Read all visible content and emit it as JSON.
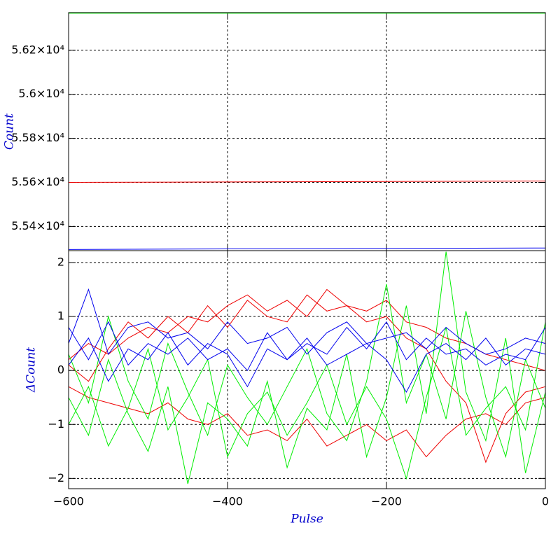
{
  "chart_data": [
    {
      "type": "line",
      "y_label": "Count",
      "x": [
        -600,
        -400,
        -200,
        0
      ],
      "xlim": [
        -600,
        0
      ],
      "xticks": [
        -600,
        -400,
        -200,
        0
      ],
      "show_xtick_labels": false,
      "ylim": [
        55290,
        56371
      ],
      "yticks": [
        {
          "value": 55400,
          "label": "5.54×10⁴"
        },
        {
          "value": 55600,
          "label": "5.56×10⁴"
        },
        {
          "value": 55800,
          "label": "5.58×10⁴"
        },
        {
          "value": 56000,
          "label": "5.6×10⁴"
        },
        {
          "value": 56200,
          "label": "5.62×10⁴"
        }
      ],
      "grid": true,
      "series": [
        {
          "color": "#00ee00",
          "values": [
            56368,
            56368,
            56368,
            56368
          ]
        },
        {
          "color": "#ee0000",
          "values": [
            55600,
            55602,
            55604,
            55606
          ]
        },
        {
          "color": "#0000ee",
          "values": [
            55295,
            55298,
            55300,
            55302
          ]
        }
      ]
    },
    {
      "type": "line",
      "y_label": "ΔCount",
      "x_label": "Pulse",
      "x": [
        -600,
        -575,
        -550,
        -525,
        -500,
        -475,
        -450,
        -425,
        -400,
        -375,
        -350,
        -325,
        -300,
        -275,
        -250,
        -225,
        -200,
        -175,
        -150,
        -125,
        -100,
        -75,
        -50,
        -25,
        0
      ],
      "xlim": [
        -600,
        0
      ],
      "xticks": [
        {
          "value": -600,
          "label": "−600"
        },
        {
          "value": -400,
          "label": "−400"
        },
        {
          "value": -200,
          "label": "−200"
        },
        0
      ],
      "show_xtick_labels": true,
      "ylim": [
        -2.19,
        2.22
      ],
      "yticks": [
        {
          "value": -2,
          "label": "−2"
        },
        {
          "value": -1,
          "label": "−1"
        },
        0,
        1,
        2
      ],
      "grid": true,
      "series": [
        {
          "color": "#ee0000",
          "values": [
            0.2,
            0.5,
            0.3,
            0.6,
            0.8,
            0.7,
            1.0,
            0.9,
            1.2,
            1.4,
            1.1,
            1.3,
            1.0,
            1.5,
            1.2,
            1.1,
            1.3,
            0.9,
            0.8,
            0.6,
            0.5,
            0.3,
            0.2,
            0.1,
            0.0
          ]
        },
        {
          "color": "#ee0000",
          "values": [
            -0.3,
            -0.5,
            -0.6,
            -0.7,
            -0.8,
            -0.6,
            -0.9,
            -1.0,
            -0.8,
            -1.2,
            -1.1,
            -1.3,
            -0.9,
            -1.4,
            -1.2,
            -1.0,
            -1.3,
            -1.1,
            -1.6,
            -1.2,
            -0.9,
            -0.8,
            -1.0,
            -0.6,
            -0.5
          ]
        },
        {
          "color": "#ee0000",
          "values": [
            0.1,
            -0.2,
            0.4,
            0.9,
            0.6,
            1.0,
            0.7,
            1.2,
            0.8,
            1.3,
            1.0,
            0.9,
            1.4,
            1.1,
            1.2,
            0.9,
            1.0,
            0.6,
            0.4,
            -0.2,
            -0.6,
            -1.7,
            -0.8,
            -0.4,
            -0.3
          ]
        },
        {
          "color": "#00ee00",
          "values": [
            -0.5,
            -1.2,
            0.2,
            -0.8,
            -1.5,
            -0.3,
            -2.1,
            -0.6,
            -0.9,
            -1.4,
            -0.2,
            -1.8,
            -0.7,
            -1.1,
            0.3,
            -1.6,
            -0.5,
            1.2,
            -0.8,
            2.2,
            -0.4,
            -1.3,
            0.6,
            -1.9,
            -0.4
          ]
        },
        {
          "color": "#00ee00",
          "values": [
            0.3,
            -0.6,
            1.0,
            -0.2,
            -0.9,
            0.5,
            -0.4,
            -1.2,
            0.1,
            -0.5,
            -1.0,
            -0.3,
            0.4,
            -0.8,
            -1.3,
            -0.2,
            1.6,
            -0.6,
            0.3,
            -0.9,
            1.1,
            -0.5,
            -1.6,
            0.2,
            -0.7
          ]
        },
        {
          "color": "#00ee00",
          "values": [
            -1.0,
            -0.3,
            -1.4,
            -0.7,
            0.4,
            -1.1,
            -0.5,
            0.2,
            -1.6,
            -0.8,
            -0.4,
            -1.2,
            -0.6,
            0.1,
            -1.0,
            -0.3,
            -0.9,
            -2.0,
            -0.5,
            0.8,
            -1.2,
            -0.7,
            -0.3,
            -1.1,
            0.9
          ]
        },
        {
          "color": "#0000ee",
          "values": [
            0.5,
            1.5,
            0.3,
            0.8,
            0.9,
            0.6,
            0.7,
            0.4,
            0.9,
            0.5,
            0.6,
            0.8,
            0.3,
            0.7,
            0.9,
            0.5,
            0.6,
            0.7,
            0.4,
            0.8,
            0.5,
            0.3,
            0.4,
            0.6,
            0.5
          ]
        },
        {
          "color": "#0000ee",
          "values": [
            0.8,
            0.2,
            0.9,
            0.1,
            0.5,
            0.3,
            0.6,
            0.2,
            0.4,
            0.0,
            0.7,
            0.2,
            0.5,
            0.3,
            0.8,
            0.4,
            0.9,
            0.2,
            0.6,
            0.3,
            0.4,
            0.1,
            0.3,
            0.2,
            0.8
          ]
        },
        {
          "color": "#0000ee",
          "values": [
            0.1,
            0.6,
            -0.2,
            0.4,
            0.2,
            0.7,
            0.1,
            0.5,
            0.3,
            -0.3,
            0.4,
            0.2,
            0.6,
            0.1,
            0.3,
            0.5,
            0.2,
            -0.4,
            0.3,
            0.5,
            0.2,
            0.6,
            0.1,
            0.4,
            0.3
          ]
        }
      ]
    }
  ]
}
